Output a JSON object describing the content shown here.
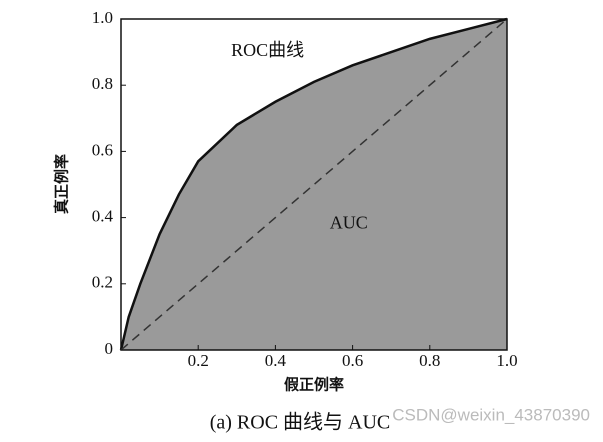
{
  "chart_data": {
    "type": "area",
    "caption": "(a) ROC 曲线与 AUC",
    "xlabel": "假正例率",
    "ylabel": "真正例率",
    "annotations": [
      {
        "text": "ROC曲线",
        "x": 0.38,
        "y": 0.9
      },
      {
        "text": "AUC",
        "x": 0.59,
        "y": 0.38
      }
    ],
    "watermark": "CSDN@weixin_43870390",
    "xlim": [
      0,
      1
    ],
    "ylim": [
      0,
      1
    ],
    "xticks": [
      0.2,
      0.4,
      0.6,
      0.8,
      {
        "value": 1,
        "label": "1.0"
      }
    ],
    "yticks": [
      0,
      0.2,
      0.4,
      0.6,
      0.8,
      {
        "value": 1,
        "label": "1.0"
      }
    ],
    "fill_color": "#9a9a9a",
    "series": [
      {
        "color": "#111111",
        "x": [
          0,
          0.02,
          0.05,
          0.1,
          0.15,
          0.2,
          0.3,
          0.4,
          0.5,
          0.6,
          0.7,
          0.8,
          0.9,
          1
        ],
        "values": [
          0,
          0.1,
          0.2,
          0.35,
          0.47,
          0.57,
          0.68,
          0.75,
          0.81,
          0.86,
          0.9,
          0.94,
          0.97,
          1
        ]
      },
      {
        "color": "#333333",
        "dashed": true,
        "x": [
          0,
          1
        ],
        "values": [
          0,
          1
        ]
      }
    ]
  }
}
